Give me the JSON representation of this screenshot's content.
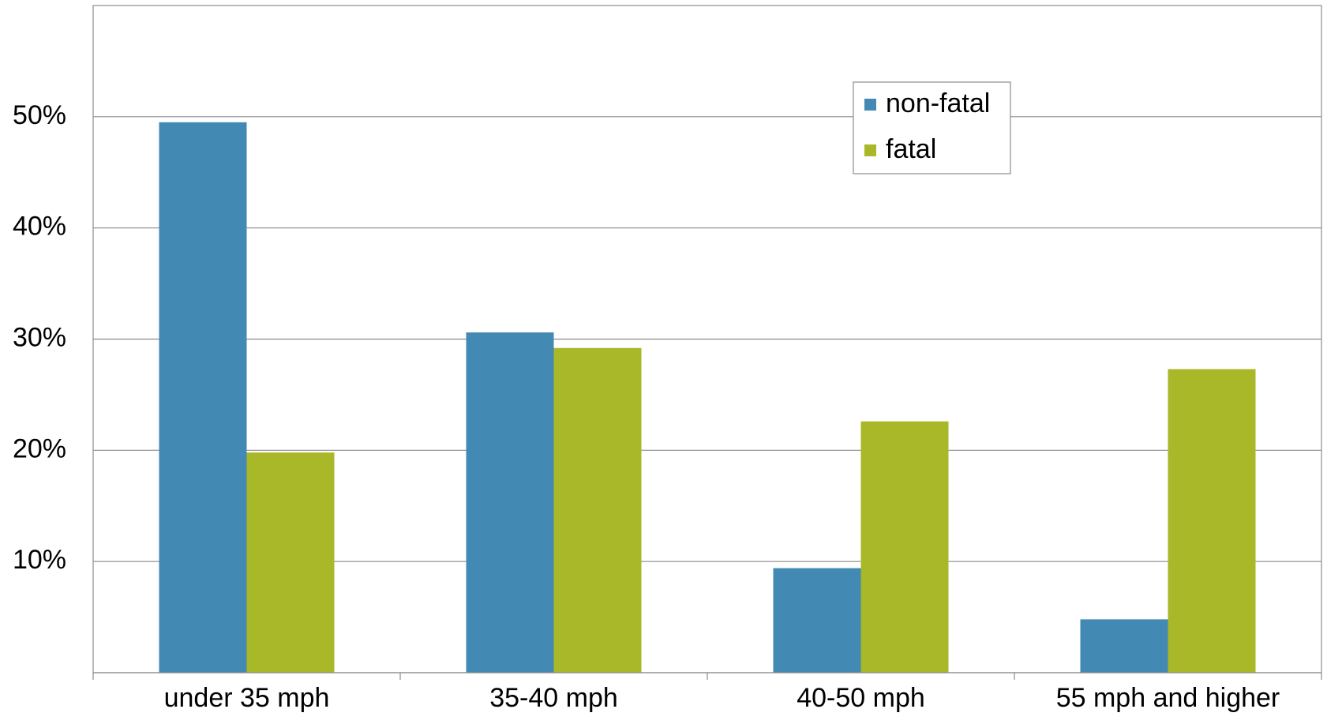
{
  "chart_data": {
    "type": "bar",
    "categories": [
      "under 35 mph",
      "35-40 mph",
      "40-50 mph",
      "55 mph and higher"
    ],
    "series": [
      {
        "name": "non-fatal",
        "color": "#4289B3",
        "values": [
          49.5,
          30.6,
          9.4,
          4.8
        ]
      },
      {
        "name": "fatal",
        "color": "#A8B829",
        "values": [
          19.8,
          29.2,
          22.6,
          27.3
        ]
      }
    ],
    "ylim": [
      0,
      60
    ],
    "yticks": [
      10,
      20,
      30,
      40,
      50
    ],
    "ytick_labels": [
      "10%",
      "20%",
      "30%",
      "40%",
      "50%"
    ],
    "grid": true,
    "legend_position": "top-right"
  }
}
